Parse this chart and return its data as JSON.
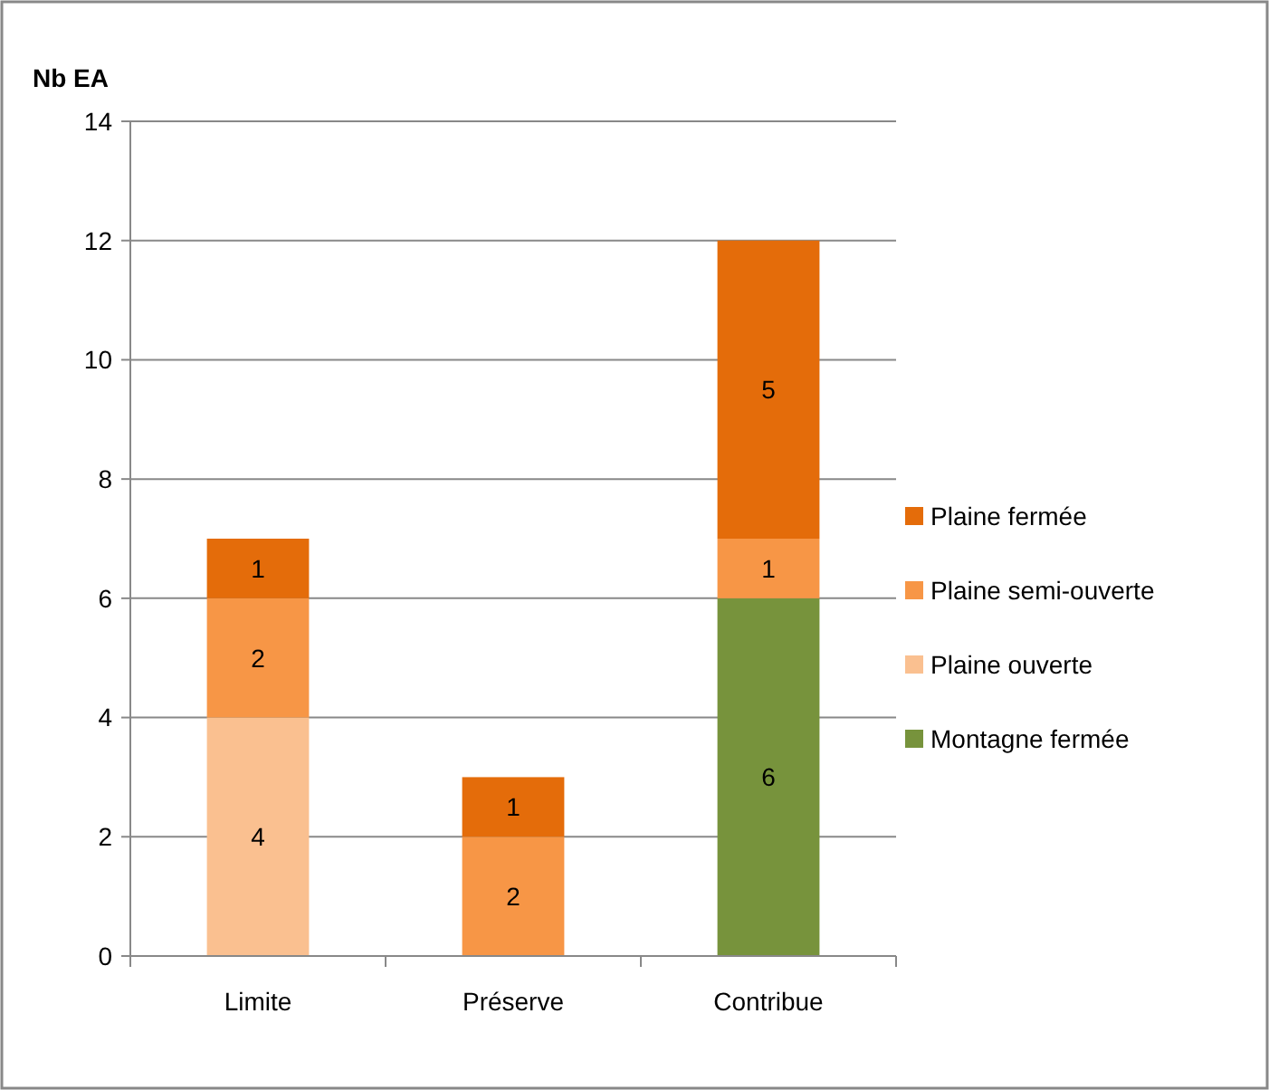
{
  "chart_data": {
    "type": "bar",
    "stacked": true,
    "ylabel": "Nb EA",
    "categories": [
      "Limite",
      "Préserve",
      "Contribue"
    ],
    "series": [
      {
        "name": "Montagne fermée",
        "color": "#77933c",
        "values": [
          null,
          null,
          6
        ]
      },
      {
        "name": "Plaine ouverte",
        "color": "#fac090",
        "values": [
          4,
          null,
          null
        ]
      },
      {
        "name": "Plaine semi-ouverte",
        "color": "#f79646",
        "values": [
          2,
          2,
          1
        ]
      },
      {
        "name": "Plaine fermée",
        "color": "#e46c0a",
        "values": [
          1,
          1,
          5
        ]
      }
    ],
    "ylim": [
      0,
      14
    ],
    "yticks": [
      0,
      2,
      4,
      6,
      8,
      10,
      12,
      14
    ],
    "grid": "y",
    "legend": "right",
    "data_labels": true
  }
}
